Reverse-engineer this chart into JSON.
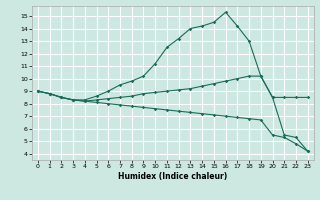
{
  "xlabel": "Humidex (Indice chaleur)",
  "bg_color": "#cce8e0",
  "grid_color": "#ffffff",
  "line_color": "#1a6b5a",
  "xlim": [
    -0.5,
    23.5
  ],
  "ylim": [
    3.5,
    15.8
  ],
  "yticks": [
    4,
    5,
    6,
    7,
    8,
    9,
    10,
    11,
    12,
    13,
    14,
    15
  ],
  "xticks": [
    0,
    1,
    2,
    3,
    4,
    5,
    6,
    7,
    8,
    9,
    10,
    11,
    12,
    13,
    14,
    15,
    16,
    17,
    18,
    19,
    20,
    21,
    22,
    23
  ],
  "line1_x": [
    0,
    1,
    2,
    3,
    4,
    5,
    6,
    7,
    8,
    9,
    10,
    11,
    12,
    13,
    14,
    15,
    16,
    17,
    18,
    19,
    20,
    21,
    22,
    23
  ],
  "line1_y": [
    9.0,
    8.8,
    8.5,
    8.3,
    8.3,
    8.6,
    9.0,
    9.5,
    9.8,
    10.2,
    11.2,
    12.5,
    13.2,
    14.0,
    14.2,
    14.5,
    15.3,
    14.2,
    13.0,
    10.2,
    8.5,
    5.5,
    5.3,
    4.2
  ],
  "line2_x": [
    0,
    1,
    2,
    3,
    4,
    5,
    6,
    7,
    8,
    9,
    10,
    11,
    12,
    13,
    14,
    15,
    16,
    17,
    18,
    19,
    20,
    21,
    22,
    23
  ],
  "line2_y": [
    9.0,
    8.8,
    8.5,
    8.3,
    8.2,
    8.3,
    8.4,
    8.5,
    8.6,
    8.8,
    8.9,
    9.0,
    9.1,
    9.2,
    9.4,
    9.6,
    9.8,
    10.0,
    10.2,
    10.2,
    8.5,
    8.5,
    8.5,
    8.5
  ],
  "line3_x": [
    0,
    1,
    2,
    3,
    4,
    5,
    6,
    7,
    8,
    9,
    10,
    11,
    12,
    13,
    14,
    15,
    16,
    17,
    18,
    19,
    20,
    21,
    22,
    23
  ],
  "line3_y": [
    9.0,
    8.8,
    8.5,
    8.3,
    8.2,
    8.1,
    8.0,
    7.9,
    7.8,
    7.7,
    7.6,
    7.5,
    7.4,
    7.3,
    7.2,
    7.1,
    7.0,
    6.9,
    6.8,
    6.7,
    5.5,
    5.3,
    4.8,
    4.2
  ]
}
